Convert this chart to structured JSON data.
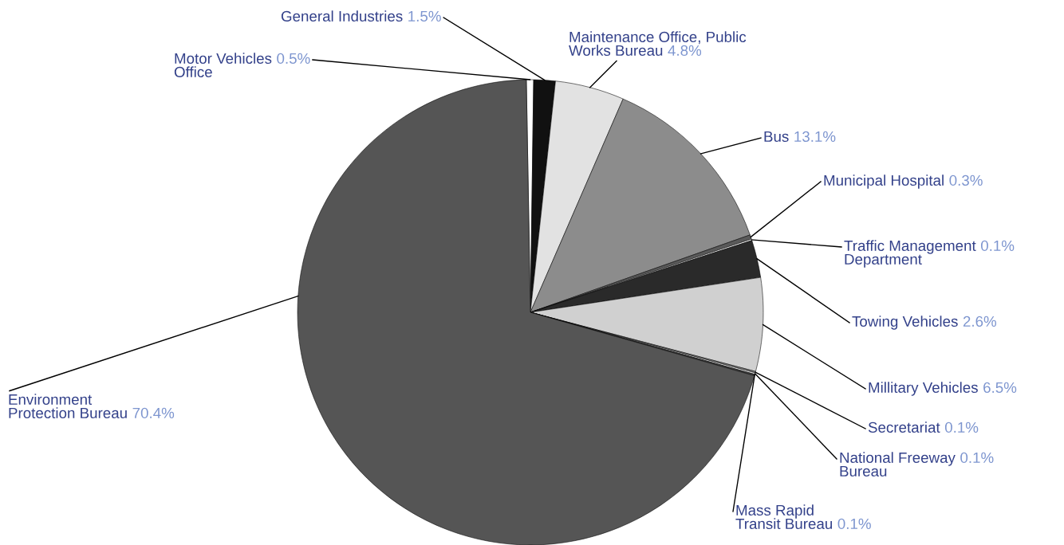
{
  "chart_data": {
    "type": "pie",
    "categories": [
      "Motor Vehicles\nOffice",
      "General Industries",
      "Maintenance Office, Public\nWorks Bureau",
      "Bus",
      "Municipal Hospital",
      "Traffic Management\nDepartment",
      "Towing Vehicles",
      "Millitary Vehicles",
      "Secretariat",
      "National Freeway\nBureau",
      "Mass Rapid\nTransit Bureau",
      "Environment\nProtection Bureau"
    ],
    "values": [
      0.5,
      1.5,
      4.8,
      13.1,
      0.3,
      0.1,
      2.6,
      6.5,
      0.1,
      0.1,
      0.1,
      70.4
    ],
    "value_labels": [
      "0.5%",
      "1.5%",
      "4.8%",
      "13.1%",
      "0.3%",
      "0.1%",
      "2.6%",
      "6.5%",
      "0.1%",
      "0.1%",
      "0.1%",
      "70.4%"
    ],
    "colors": [
      "#ffffff",
      "#111111",
      "#e2e2e2",
      "#8c8c8c",
      "#5a5a5a",
      "#ffffff",
      "#2a2a2a",
      "#d0d0d0",
      "#888888",
      "#ffffff",
      "#444444",
      "#555555"
    ],
    "legend": false
  }
}
